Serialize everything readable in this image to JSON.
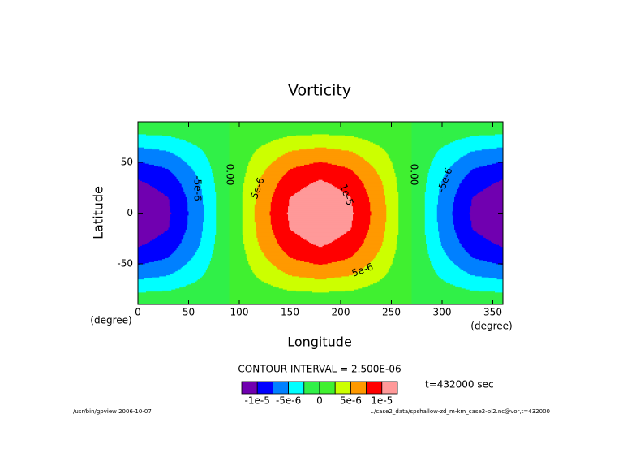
{
  "chart_data": {
    "type": "contour",
    "title": "Vorticity",
    "x_label": "Longitude",
    "y_label": "Latitude",
    "x_unit": "(degree)",
    "y_unit": "(degree)",
    "xlim": [
      0,
      360
    ],
    "ylim": [
      -90,
      90
    ],
    "xticks": [
      0,
      50,
      100,
      150,
      200,
      250,
      300,
      350
    ],
    "yticks": [
      -50,
      0,
      50
    ],
    "x": [
      0,
      30,
      60,
      90,
      120,
      150,
      180,
      210,
      240,
      270,
      300,
      330,
      360
    ],
    "y": [
      -90,
      -75,
      -60,
      -45,
      -30,
      -15,
      0,
      15,
      30,
      45,
      60,
      75,
      90
    ],
    "z": [
      [
        0,
        0,
        0,
        0,
        0,
        0,
        0,
        0,
        0,
        0,
        0,
        0,
        0
      ],
      [
        -3.11e-06,
        -2.69e-06,
        -1.55e-06,
        0,
        1.55e-06,
        2.69e-06,
        3.11e-06,
        2.69e-06,
        1.55e-06,
        0,
        -1.55e-06,
        -2.69e-06,
        -3.11e-06
      ],
      [
        -6e-06,
        -5.2e-06,
        -3e-06,
        0,
        3e-06,
        5.2e-06,
        6e-06,
        5.2e-06,
        3e-06,
        0,
        -3e-06,
        -5.2e-06,
        -6e-06
      ],
      [
        -8.48e-06,
        -7.35e-06,
        -4.24e-06,
        0,
        4.24e-06,
        7.35e-06,
        8.48e-06,
        7.35e-06,
        4.24e-06,
        0,
        -4.24e-06,
        -7.35e-06,
        -8.48e-06
      ],
      [
        -1.039e-05,
        -9e-06,
        -5.2e-06,
        0,
        5.2e-06,
        9e-06,
        1.039e-05,
        9e-06,
        5.2e-06,
        0,
        -5.2e-06,
        -9e-06,
        -1.039e-05
      ],
      [
        -1.159e-05,
        -1.004e-05,
        -5.8e-06,
        0,
        5.8e-06,
        1.004e-05,
        1.159e-05,
        1.004e-05,
        5.8e-06,
        0,
        -5.8e-06,
        -1.004e-05,
        -1.159e-05
      ],
      [
        -1.2e-05,
        -1.039e-05,
        -6e-06,
        0,
        6e-06,
        1.039e-05,
        1.2e-05,
        1.039e-05,
        6e-06,
        0,
        -6e-06,
        -1.039e-05,
        -1.2e-05
      ],
      [
        -1.159e-05,
        -1.004e-05,
        -5.8e-06,
        0,
        5.8e-06,
        1.004e-05,
        1.159e-05,
        1.004e-05,
        5.8e-06,
        0,
        -5.8e-06,
        -1.004e-05,
        -1.159e-05
      ],
      [
        -1.039e-05,
        -9e-06,
        -5.2e-06,
        0,
        5.2e-06,
        9e-06,
        1.039e-05,
        9e-06,
        5.2e-06,
        0,
        -5.2e-06,
        -9e-06,
        -1.039e-05
      ],
      [
        -8.48e-06,
        -7.35e-06,
        -4.24e-06,
        0,
        4.24e-06,
        7.35e-06,
        8.48e-06,
        7.35e-06,
        4.24e-06,
        0,
        -4.24e-06,
        -7.35e-06,
        -8.48e-06
      ],
      [
        -6e-06,
        -5.2e-06,
        -3e-06,
        0,
        3e-06,
        5.2e-06,
        6e-06,
        5.2e-06,
        3e-06,
        0,
        -3e-06,
        -5.2e-06,
        -6e-06
      ],
      [
        -3.11e-06,
        -2.69e-06,
        -1.55e-06,
        0,
        1.55e-06,
        2.69e-06,
        3.11e-06,
        2.69e-06,
        1.55e-06,
        0,
        -1.55e-06,
        -2.69e-06,
        -3.11e-06
      ],
      [
        0,
        0,
        0,
        0,
        0,
        0,
        0,
        0,
        0,
        0,
        0,
        0,
        0
      ]
    ],
    "levels": [
      -1e-05,
      -7.5e-06,
      -5e-06,
      -2.5e-06,
      0,
      2.5e-06,
      5e-06,
      7.5e-06,
      1e-05
    ],
    "colors": [
      "#7000b0",
      "#0000ff",
      "#0080ff",
      "#00ffff",
      "#30f048",
      "#40f030",
      "#ccff00",
      "#ff9900",
      "#ff0000",
      "#ff9999"
    ],
    "colorbar_ticks": [
      {
        "value": -1e-05,
        "label": "-1e-5"
      },
      {
        "value": -5e-06,
        "label": "-5e-6"
      },
      {
        "value": 0,
        "label": "0"
      },
      {
        "value": 5e-06,
        "label": "5e-6"
      },
      {
        "value": 1e-05,
        "label": "1e-5"
      }
    ],
    "contour_labels": [
      "-5e-6",
      "0.00",
      "5e-6",
      "1e-5",
      "5e-6",
      "0.00",
      "-5e-6"
    ],
    "contour_interval": "CONTOUR INTERVAL = 2.500E-06",
    "time_label": "t=432000 sec",
    "footer_left": "/usr/bin/gpview  2006-10-07",
    "footer_right": "../case2_data/spshallow-zd_m-km_case2-pi2.nc@vor,t=432000"
  }
}
